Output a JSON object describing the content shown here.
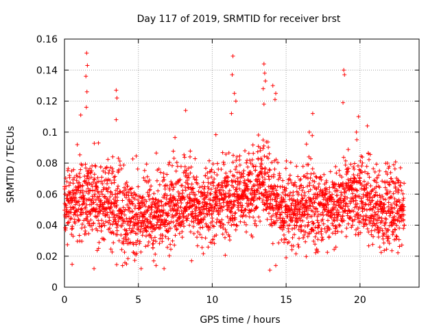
{
  "chart_data": {
    "type": "scatter",
    "title": "Day 117 of 2019, SRMTID for receiver brst",
    "xlabel": "GPS time / hours",
    "ylabel": "SRMTID / TECUs",
    "xlim": [
      0,
      24
    ],
    "ylim": [
      0,
      0.16
    ],
    "grid": true,
    "marker": "plus",
    "color": "#ff0000",
    "x_ticks": [
      0,
      5,
      10,
      15,
      20
    ],
    "x_tick_labels": [
      "0",
      "5",
      "10",
      "15",
      "20"
    ],
    "y_ticks": [
      0,
      0.02,
      0.04,
      0.06,
      0.08,
      0.1,
      0.12,
      0.14,
      0.16
    ],
    "y_tick_labels": [
      "0",
      "0.02",
      "0.04",
      "0.06",
      "0.08",
      "0.1",
      "0.12",
      "0.14",
      "0.16"
    ],
    "data_range": {
      "x_min": 0,
      "x_max": 23,
      "step_hours": 0.00833
    },
    "series": [
      {
        "name": "brst",
        "baseline_profile": {
          "hours": [
            0,
            1,
            2,
            3,
            4,
            5,
            6,
            7,
            8,
            9,
            10,
            11,
            12,
            13,
            14,
            15,
            16,
            17,
            18,
            19,
            20,
            21,
            22,
            23
          ],
          "typical_values": [
            0.05,
            0.055,
            0.055,
            0.055,
            0.045,
            0.045,
            0.045,
            0.05,
            0.055,
            0.052,
            0.055,
            0.058,
            0.058,
            0.065,
            0.06,
            0.05,
            0.052,
            0.05,
            0.05,
            0.055,
            0.06,
            0.05,
            0.05,
            0.05
          ]
        },
        "peaks": [
          {
            "x": 1.5,
            "y": 0.151
          },
          {
            "x": 1.55,
            "y": 0.143
          },
          {
            "x": 1.45,
            "y": 0.136
          },
          {
            "x": 1.52,
            "y": 0.126
          },
          {
            "x": 1.48,
            "y": 0.116
          },
          {
            "x": 1.1,
            "y": 0.111
          },
          {
            "x": 3.5,
            "y": 0.127
          },
          {
            "x": 3.55,
            "y": 0.122
          },
          {
            "x": 3.5,
            "y": 0.108
          },
          {
            "x": 8.2,
            "y": 0.114
          },
          {
            "x": 11.4,
            "y": 0.149
          },
          {
            "x": 11.35,
            "y": 0.137
          },
          {
            "x": 11.5,
            "y": 0.125
          },
          {
            "x": 11.6,
            "y": 0.12
          },
          {
            "x": 11.3,
            "y": 0.112
          },
          {
            "x": 13.5,
            "y": 0.144
          },
          {
            "x": 13.55,
            "y": 0.138
          },
          {
            "x": 13.6,
            "y": 0.133
          },
          {
            "x": 13.45,
            "y": 0.128
          },
          {
            "x": 13.5,
            "y": 0.118
          },
          {
            "x": 14.1,
            "y": 0.13
          },
          {
            "x": 14.3,
            "y": 0.125
          },
          {
            "x": 14.25,
            "y": 0.121
          },
          {
            "x": 16.8,
            "y": 0.112
          },
          {
            "x": 18.9,
            "y": 0.14
          },
          {
            "x": 18.95,
            "y": 0.137
          },
          {
            "x": 18.85,
            "y": 0.119
          },
          {
            "x": 19.9,
            "y": 0.11
          },
          {
            "x": 20.5,
            "y": 0.104
          }
        ],
        "troughs": [
          {
            "x": 2.0,
            "y": 0.012
          },
          {
            "x": 13.9,
            "y": 0.011
          },
          {
            "x": 14.3,
            "y": 0.014
          },
          {
            "x": 4.2,
            "y": 0.015
          },
          {
            "x": 6.2,
            "y": 0.014
          },
          {
            "x": 15.0,
            "y": 0.019
          },
          {
            "x": 8.6,
            "y": 0.017
          }
        ]
      }
    ]
  }
}
